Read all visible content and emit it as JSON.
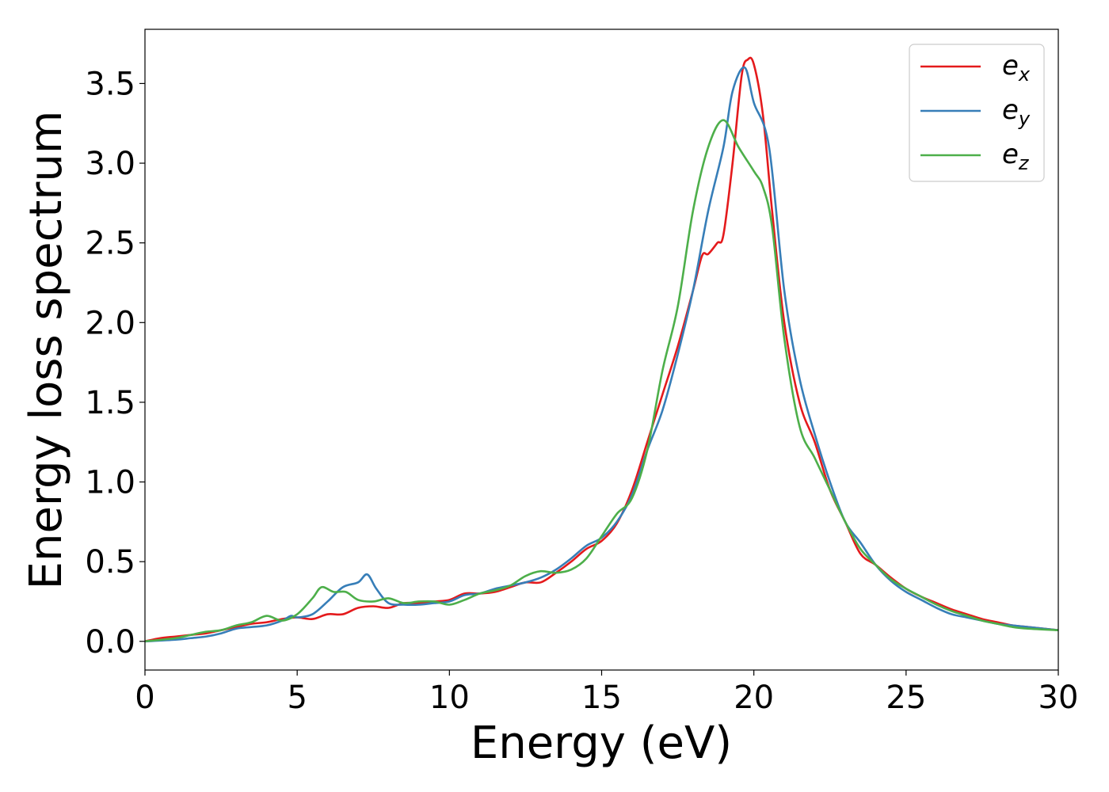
{
  "chart_data": {
    "type": "line",
    "title": "",
    "xlabel": "Energy (eV)",
    "ylabel": "Energy loss spectrum",
    "xlim": [
      0,
      30
    ],
    "ylim": [
      -0.18,
      3.84
    ],
    "xticks": [
      0,
      5,
      10,
      15,
      20,
      25,
      30
    ],
    "xtick_labels": [
      "0",
      "5",
      "10",
      "15",
      "20",
      "25",
      "30"
    ],
    "yticks": [
      0.0,
      0.5,
      1.0,
      1.5,
      2.0,
      2.5,
      3.0,
      3.5
    ],
    "ytick_labels": [
      "0.0",
      "0.5",
      "1.0",
      "1.5",
      "2.0",
      "2.5",
      "3.0",
      "3.5"
    ],
    "grid": false,
    "legend_position": "top-right",
    "series": [
      {
        "name": "e_x",
        "label_base": "e",
        "label_sub": "x",
        "color": "#e41a1c",
        "x": [
          0,
          0.5,
          1,
          1.5,
          2,
          2.5,
          3,
          3.5,
          4,
          4.5,
          5,
          5.5,
          6,
          6.5,
          7,
          7.5,
          8,
          8.5,
          9,
          9.5,
          10,
          10.5,
          11,
          11.5,
          12,
          12.5,
          13,
          13.5,
          14,
          14.5,
          15,
          15.5,
          16,
          16.5,
          17,
          17.5,
          18,
          18.3,
          18.5,
          18.8,
          19,
          19.3,
          19.6,
          19.8,
          20,
          20.3,
          20.6,
          21,
          21.5,
          22,
          22.5,
          23,
          23.5,
          24,
          24.5,
          25,
          25.5,
          26,
          26.5,
          27,
          27.5,
          28,
          28.5,
          29,
          29.5,
          30
        ],
        "y": [
          0,
          0.02,
          0.03,
          0.04,
          0.05,
          0.07,
          0.09,
          0.11,
          0.12,
          0.14,
          0.15,
          0.14,
          0.17,
          0.17,
          0.21,
          0.22,
          0.21,
          0.24,
          0.24,
          0.25,
          0.26,
          0.3,
          0.3,
          0.31,
          0.34,
          0.37,
          0.37,
          0.43,
          0.5,
          0.58,
          0.63,
          0.74,
          0.95,
          1.25,
          1.55,
          1.85,
          2.2,
          2.42,
          2.43,
          2.5,
          2.55,
          3.0,
          3.55,
          3.65,
          3.62,
          3.3,
          2.7,
          2.0,
          1.5,
          1.25,
          0.95,
          0.75,
          0.55,
          0.48,
          0.4,
          0.33,
          0.28,
          0.24,
          0.2,
          0.17,
          0.14,
          0.12,
          0.1,
          0.09,
          0.08,
          0.07
        ]
      },
      {
        "name": "e_y",
        "label_base": "e",
        "label_sub": "y",
        "color": "#377eb8",
        "x": [
          0,
          1,
          1.5,
          2,
          2.5,
          3,
          3.5,
          4,
          4.5,
          4.8,
          5,
          5.5,
          6,
          6.5,
          7,
          7.3,
          7.6,
          8,
          8.5,
          9,
          9.5,
          10,
          10.5,
          11,
          11.5,
          12,
          12.5,
          13,
          13.5,
          14,
          14.5,
          15,
          15.5,
          16,
          16.5,
          17,
          17.5,
          18,
          18.5,
          19,
          19.3,
          19.7,
          20,
          20.5,
          21,
          21.5,
          22,
          22.5,
          23,
          23.5,
          24,
          24.5,
          25,
          25.5,
          26,
          26.5,
          27,
          27.5,
          28,
          28.5,
          29,
          30
        ],
        "y": [
          0,
          0.01,
          0.02,
          0.03,
          0.05,
          0.08,
          0.09,
          0.1,
          0.13,
          0.16,
          0.15,
          0.17,
          0.25,
          0.34,
          0.37,
          0.42,
          0.33,
          0.24,
          0.23,
          0.23,
          0.24,
          0.25,
          0.29,
          0.3,
          0.33,
          0.35,
          0.37,
          0.4,
          0.45,
          0.52,
          0.6,
          0.65,
          0.75,
          0.92,
          1.2,
          1.45,
          1.8,
          2.2,
          2.7,
          3.1,
          3.45,
          3.6,
          3.38,
          3.1,
          2.2,
          1.65,
          1.3,
          1.0,
          0.75,
          0.62,
          0.48,
          0.38,
          0.31,
          0.26,
          0.21,
          0.17,
          0.15,
          0.13,
          0.11,
          0.1,
          0.09,
          0.07
        ]
      },
      {
        "name": "e_z",
        "label_base": "e",
        "label_sub": "z",
        "color": "#4daf4a",
        "x": [
          0,
          1,
          1.5,
          2,
          2.5,
          3,
          3.5,
          4,
          4.5,
          5,
          5.5,
          5.8,
          6.2,
          6.6,
          7,
          7.5,
          8,
          8.5,
          9,
          9.5,
          10,
          10.5,
          11,
          11.5,
          12,
          12.5,
          13,
          13.5,
          14,
          14.5,
          15,
          15.5,
          16,
          16.5,
          17,
          17.5,
          18,
          18.5,
          19,
          19.5,
          20,
          20.3,
          20.6,
          21,
          21.5,
          22,
          22.5,
          23,
          23.5,
          24,
          24.5,
          25,
          25.5,
          26,
          26.5,
          27,
          27.5,
          28,
          28.5,
          29,
          30
        ],
        "y": [
          0,
          0.02,
          0.04,
          0.06,
          0.07,
          0.1,
          0.12,
          0.16,
          0.13,
          0.17,
          0.27,
          0.34,
          0.31,
          0.31,
          0.26,
          0.25,
          0.27,
          0.24,
          0.25,
          0.25,
          0.23,
          0.26,
          0.3,
          0.32,
          0.35,
          0.41,
          0.44,
          0.43,
          0.45,
          0.52,
          0.66,
          0.8,
          0.9,
          1.2,
          1.7,
          2.1,
          2.7,
          3.1,
          3.27,
          3.1,
          2.95,
          2.85,
          2.6,
          1.9,
          1.35,
          1.15,
          0.95,
          0.75,
          0.58,
          0.48,
          0.39,
          0.33,
          0.28,
          0.23,
          0.19,
          0.16,
          0.13,
          0.11,
          0.09,
          0.08,
          0.07
        ]
      }
    ]
  }
}
